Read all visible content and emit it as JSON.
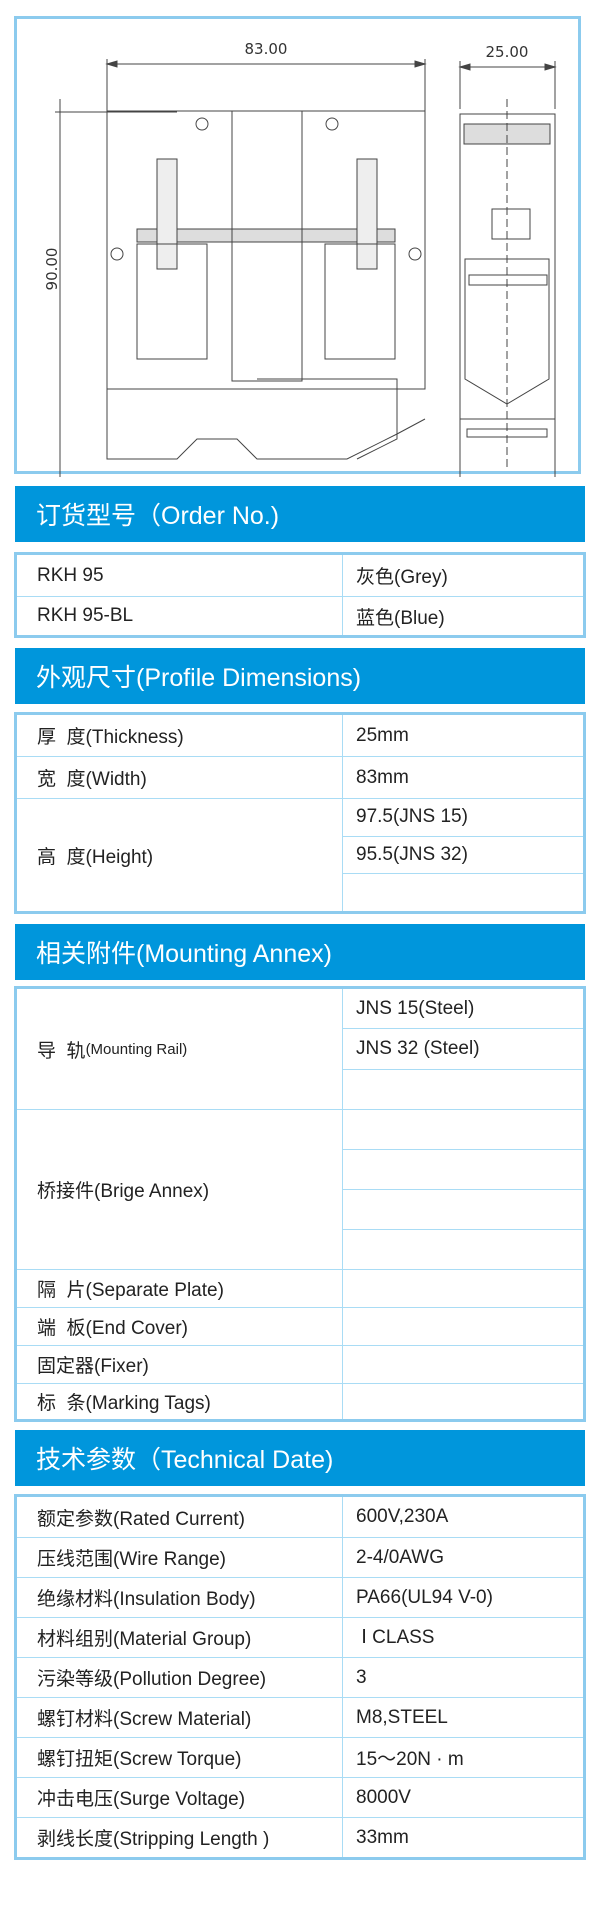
{
  "drawing": {
    "width_label": "83.00",
    "thickness_label": "25.00",
    "height_label": "90.00"
  },
  "colors": {
    "header_bg": "#0096dc",
    "border": "#8ccbee",
    "grid": "#a9dcf5"
  },
  "order": {
    "title": "订货型号（Order No.)",
    "rows": [
      {
        "model": "RKH 95",
        "color": "灰色(Grey)"
      },
      {
        "model": "RKH 95-BL",
        "color": "蓝色(Blue)"
      }
    ]
  },
  "profile": {
    "title": "外观尺寸(Profile Dimensions)",
    "thickness": {
      "label": "厚  度(Thickness)",
      "value": "25mm"
    },
    "width": {
      "label": "宽  度(Width)",
      "value": "83mm"
    },
    "height": {
      "label": "高  度(Height)",
      "values": [
        "97.5(JNS 15)",
        "95.5(JNS 32)",
        ""
      ]
    }
  },
  "annex": {
    "title": "相关附件(Mounting Annex)",
    "rail": {
      "label_cn": "导  轨",
      "label_en": "(Mounting Rail)",
      "values": [
        "JNS 15(Steel)",
        "JNS 32 (Steel)",
        ""
      ]
    },
    "bridge": {
      "label": "桥接件(Brige Annex)"
    },
    "separate": {
      "label": "隔  片(Separate Plate)"
    },
    "end_cover": {
      "label": "端  板(End Cover)"
    },
    "fixer": {
      "label": "固定器(Fixer)"
    },
    "marking": {
      "label": "标  条(Marking Tags)"
    }
  },
  "tech": {
    "title": "技术参数（Technical Date)",
    "rows": [
      {
        "label": "额定参数(Rated Current)",
        "value": "600V,230A"
      },
      {
        "label": "压线范围(Wire Range)",
        "value": "2-4/0AWG"
      },
      {
        "label": "绝缘材料(Insulation Body)",
        "value": "PA66(UL94 V-0)"
      },
      {
        "label": "材料组别(Material Group)",
        "value": " Ⅰ CLASS"
      },
      {
        "label": "污染等级(Pollution Degree)",
        "value": "3"
      },
      {
        "label": "螺钉材料(Screw Material)",
        "value": "M8,STEEL"
      },
      {
        "label": "螺钉扭矩(Screw Torque)",
        "value": "15～20N · m"
      },
      {
        "label": "冲击电压(Surge Voltage)",
        "value": "8000V"
      },
      {
        "label": "剥线长度(Stripping Length )",
        "value": "33mm"
      }
    ]
  }
}
